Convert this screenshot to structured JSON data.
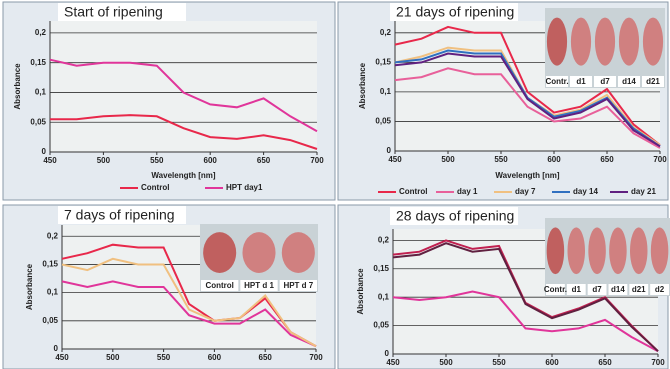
{
  "chart_data": [
    {
      "type": "line",
      "title": "Start of ripening",
      "ylabel": "Absorbance",
      "xlabel": "Wavelength [nm]",
      "x": [
        450,
        475,
        500,
        525,
        550,
        575,
        600,
        625,
        650,
        675,
        700
      ],
      "xlim": [
        450,
        700
      ],
      "xticks": [
        450,
        500,
        550,
        600,
        650,
        700
      ],
      "ylim": [
        0,
        0.22
      ],
      "yticks": [
        0,
        {
          "value": 0.05,
          "label": "0,05"
        },
        {
          "value": 0.1,
          "label": "0,1"
        },
        {
          "value": 0.15,
          "label": "0,15"
        },
        {
          "value": 0.2,
          "label": "0,2"
        }
      ],
      "grid": true,
      "series": [
        {
          "name": "Control",
          "color": "#e8284a",
          "values": [
            0.055,
            0.055,
            0.06,
            0.062,
            0.06,
            0.04,
            0.025,
            0.022,
            0.028,
            0.02,
            0.005
          ]
        },
        {
          "name": "HPT day1",
          "color": "#e0359a",
          "values": [
            0.155,
            0.145,
            0.15,
            0.15,
            0.145,
            0.1,
            0.08,
            0.075,
            0.09,
            0.06,
            0.035
          ]
        }
      ]
    },
    {
      "type": "line",
      "title": "21 days of ripening",
      "ylabel": "Absorbance",
      "xlabel": "Wavelength [nm]",
      "x": [
        450,
        475,
        500,
        525,
        550,
        575,
        600,
        625,
        650,
        675,
        700
      ],
      "xlim": [
        450,
        700
      ],
      "xticks": [
        450,
        500,
        550,
        600,
        650,
        700
      ],
      "ylim": [
        0,
        0.22
      ],
      "yticks": [
        0,
        {
          "value": 0.05,
          "label": "0,05"
        },
        {
          "value": 0.1,
          "label": "0,1"
        },
        {
          "value": 0.15,
          "label": "0,15"
        },
        {
          "value": 0.2,
          "label": "0,2"
        }
      ],
      "grid": true,
      "photo_labels": [
        "Contr.",
        "d1",
        "d7",
        "d14",
        "d21"
      ],
      "series": [
        {
          "name": "Control",
          "color": "#e8284a",
          "values": [
            0.18,
            0.19,
            0.21,
            0.2,
            0.2,
            0.1,
            0.065,
            0.075,
            0.105,
            0.045,
            0.01
          ]
        },
        {
          "name": "day 1",
          "color": "#e8609a",
          "values": [
            0.12,
            0.125,
            0.14,
            0.13,
            0.13,
            0.075,
            0.05,
            0.055,
            0.075,
            0.03,
            0.005
          ]
        },
        {
          "name": "day 7",
          "color": "#f0c080",
          "values": [
            0.15,
            0.16,
            0.175,
            0.17,
            0.17,
            0.09,
            0.06,
            0.07,
            0.095,
            0.04,
            0.01
          ]
        },
        {
          "name": "day 14",
          "color": "#3070c0",
          "values": [
            0.15,
            0.155,
            0.17,
            0.165,
            0.165,
            0.09,
            0.058,
            0.068,
            0.09,
            0.038,
            0.008
          ]
        },
        {
          "name": "day 21",
          "color": "#602080",
          "values": [
            0.145,
            0.15,
            0.165,
            0.16,
            0.16,
            0.088,
            0.055,
            0.065,
            0.088,
            0.035,
            0.008
          ]
        }
      ]
    },
    {
      "type": "line",
      "title": "7 days of ripening",
      "ylabel": "Absorbance",
      "x": [
        450,
        475,
        500,
        525,
        550,
        575,
        600,
        625,
        650,
        675,
        700
      ],
      "xlim": [
        450,
        700
      ],
      "xticks": [
        450,
        500,
        550,
        600,
        650,
        700
      ],
      "ylim": [
        0,
        0.22
      ],
      "yticks": [
        0,
        {
          "value": 0.05,
          "label": "0,05"
        },
        {
          "value": 0.1,
          "label": "0,1"
        },
        {
          "value": 0.15,
          "label": "0,15"
        },
        {
          "value": 0.2,
          "label": "0,2"
        }
      ],
      "grid": true,
      "photo_labels": [
        "Control",
        "HPT d 1",
        "HPT d 7"
      ],
      "series": [
        {
          "color": "#e8284a",
          "values": [
            0.16,
            0.17,
            0.185,
            0.18,
            0.18,
            0.08,
            0.05,
            0.055,
            0.09,
            0.03,
            0.005
          ]
        },
        {
          "color": "#e0359a",
          "values": [
            0.12,
            0.11,
            0.12,
            0.11,
            0.11,
            0.06,
            0.045,
            0.045,
            0.07,
            0.025,
            0.005
          ]
        },
        {
          "color": "#f0c080",
          "values": [
            0.15,
            0.14,
            0.16,
            0.15,
            0.15,
            0.07,
            0.05,
            0.055,
            0.095,
            0.03,
            0.005
          ]
        }
      ]
    },
    {
      "type": "line",
      "title": "28 days of ripening",
      "ylabel": "Absorbance",
      "x": [
        450,
        475,
        500,
        525,
        550,
        575,
        600,
        625,
        650,
        675,
        700
      ],
      "xlim": [
        450,
        700
      ],
      "xticks": [
        450,
        500,
        550,
        600,
        650,
        700
      ],
      "ylim": [
        0,
        0.22
      ],
      "yticks": [
        0,
        {
          "value": 0.05,
          "label": "0,05"
        },
        {
          "value": 0.1,
          "label": "0,1"
        },
        {
          "value": 0.15,
          "label": "0,15"
        },
        {
          "value": 0.2,
          "label": "0,2"
        }
      ],
      "grid": true,
      "photo_labels": [
        "Contr.",
        "d1",
        "d7",
        "d14",
        "d21",
        "d2"
      ],
      "series": [
        {
          "color": "#c02050",
          "values": [
            0.175,
            0.18,
            0.2,
            0.185,
            0.19,
            0.09,
            0.065,
            0.08,
            0.1,
            0.05,
            0.005
          ]
        },
        {
          "color": "#e0359a",
          "values": [
            0.1,
            0.095,
            0.1,
            0.11,
            0.1,
            0.045,
            0.04,
            0.045,
            0.06,
            0.03,
            0.005
          ]
        },
        {
          "color": "#602040",
          "values": [
            0.17,
            0.175,
            0.195,
            0.18,
            0.185,
            0.088,
            0.063,
            0.078,
            0.098,
            0.048,
            0.005
          ]
        }
      ]
    }
  ]
}
